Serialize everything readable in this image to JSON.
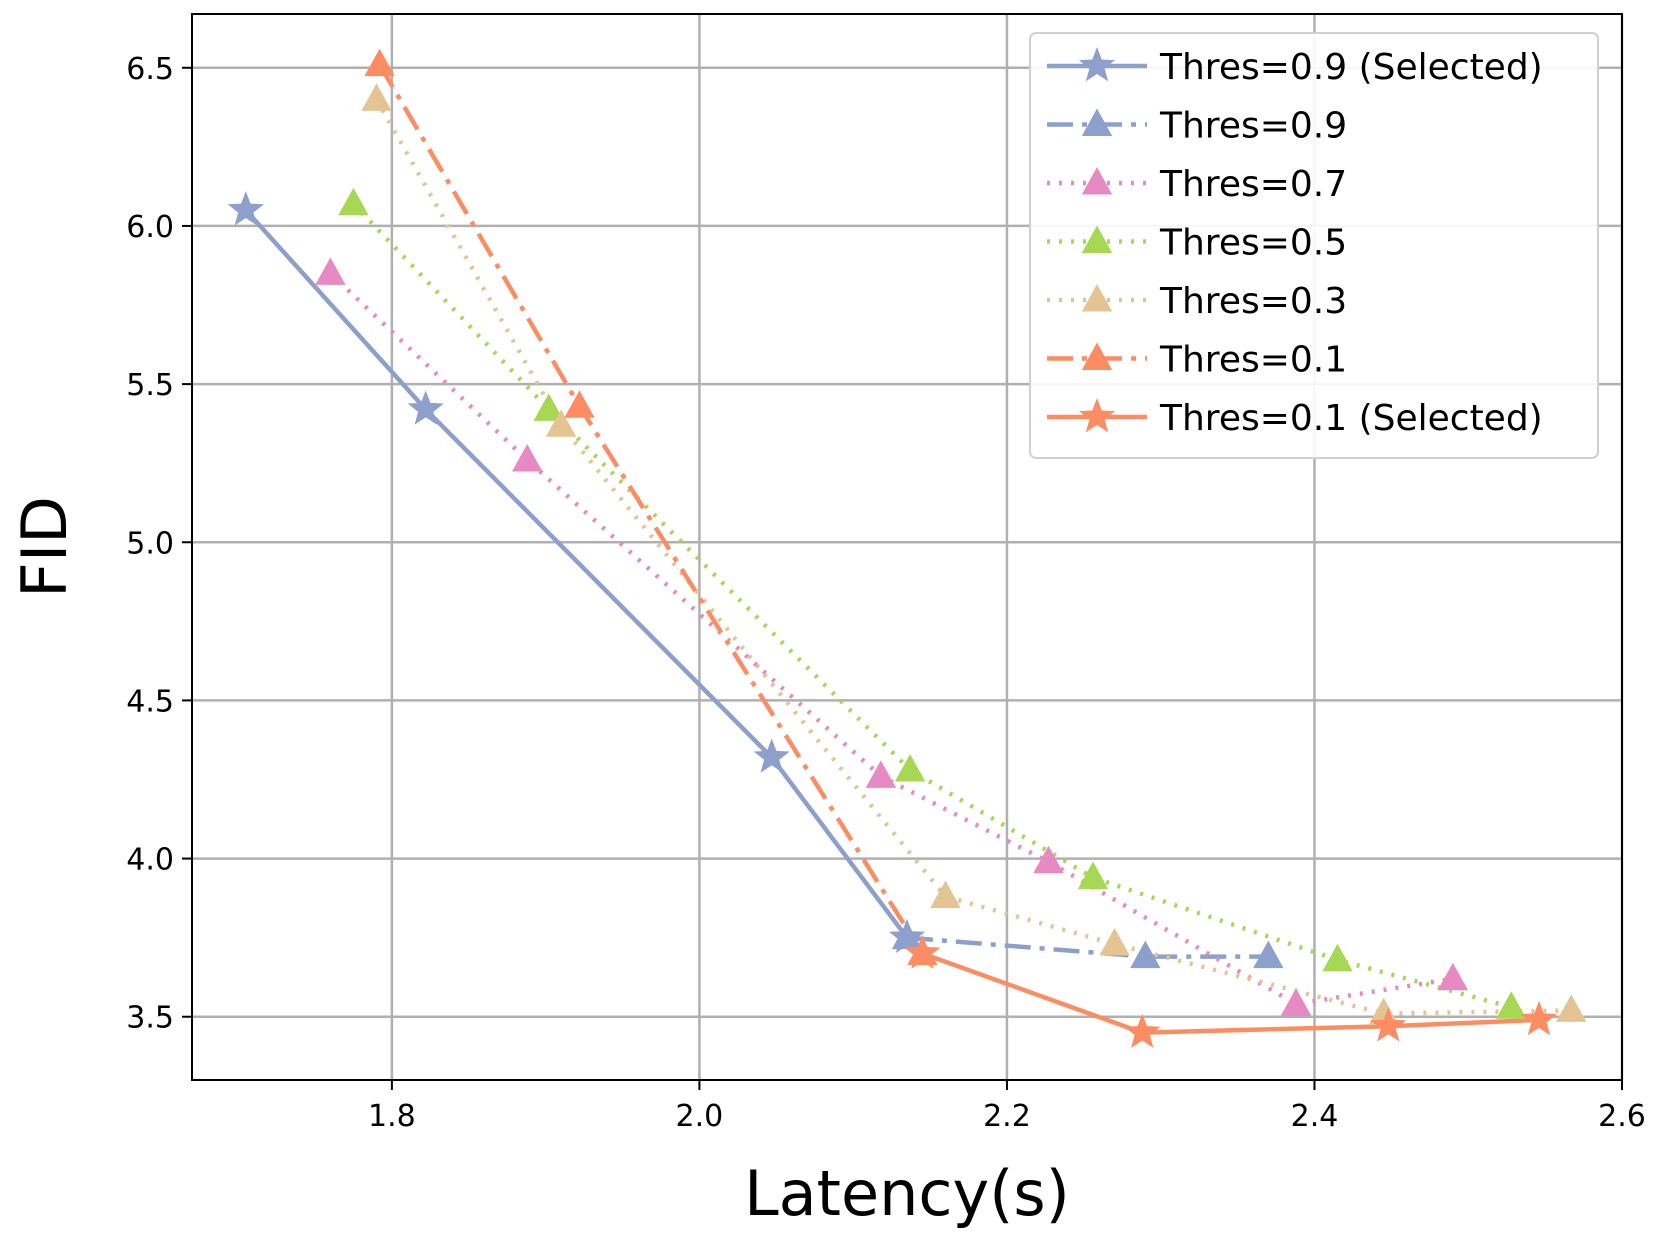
{
  "chart_data": {
    "type": "line",
    "title": "",
    "xlabel": "Latency(s)",
    "ylabel": "FID",
    "xlim": [
      1.67,
      2.6
    ],
    "ylim": [
      3.3,
      6.67
    ],
    "xticks": [
      1.8,
      2.0,
      2.2,
      2.4,
      2.6
    ],
    "xtick_labels": [
      "1.8",
      "2.0",
      "2.2",
      "2.4",
      "2.6"
    ],
    "yticks": [
      3.5,
      4.0,
      4.5,
      5.0,
      5.5,
      6.0,
      6.5
    ],
    "ytick_labels": [
      "3.5",
      "4.0",
      "4.5",
      "5.0",
      "5.5",
      "6.0",
      "6.5"
    ],
    "grid": true,
    "legend_position": "top-right",
    "series": [
      {
        "name": "Thres=0.9 (Selected)",
        "color": "#8da0cb",
        "linestyle": "solid",
        "marker": "star",
        "x": [
          1.705,
          1.822,
          2.047,
          2.135
        ],
        "y": [
          6.05,
          5.42,
          4.32,
          3.75
        ]
      },
      {
        "name": "Thres=0.9",
        "color": "#8da0cb",
        "linestyle": "dashdot",
        "marker": "triangle",
        "x": [
          2.135,
          2.29,
          2.37
        ],
        "y": [
          3.75,
          3.69,
          3.69
        ]
      },
      {
        "name": "Thres=0.7",
        "color": "#e78ac3",
        "linestyle": "dotted",
        "marker": "triangle",
        "x": [
          1.76,
          1.888,
          2.118,
          2.227,
          2.388,
          2.49
        ],
        "y": [
          5.85,
          5.26,
          4.26,
          3.99,
          3.54,
          3.62
        ]
      },
      {
        "name": "Thres=0.5",
        "color": "#a6d854",
        "linestyle": "dotted",
        "marker": "triangle",
        "x": [
          1.775,
          1.902,
          2.137,
          2.256,
          2.415,
          2.528
        ],
        "y": [
          6.07,
          5.42,
          4.28,
          3.94,
          3.68,
          3.53
        ]
      },
      {
        "name": "Thres=0.3",
        "color": "#e5c494",
        "linestyle": "dotted",
        "marker": "triangle",
        "x": [
          1.79,
          1.91,
          2.16,
          2.27,
          2.445,
          2.567
        ],
        "y": [
          6.4,
          5.37,
          3.88,
          3.73,
          3.51,
          3.52
        ]
      },
      {
        "name": "Thres=0.1",
        "color": "#fc8d62",
        "linestyle": "dashdot",
        "marker": "triangle",
        "x": [
          1.792,
          1.922,
          2.145
        ],
        "y": [
          6.51,
          5.43,
          3.7
        ]
      },
      {
        "name": "Thres=0.1 (Selected)",
        "color": "#fc8d62",
        "linestyle": "solid",
        "marker": "star",
        "x": [
          2.145,
          2.288,
          2.448,
          2.546
        ],
        "y": [
          3.7,
          3.45,
          3.47,
          3.49
        ]
      }
    ]
  }
}
